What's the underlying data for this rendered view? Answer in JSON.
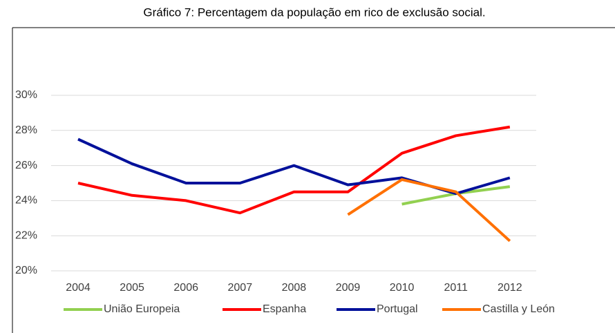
{
  "chart_data": {
    "type": "line",
    "title": "Gráfico 7: Percentagem da população em rico de exclusão social.",
    "categories": [
      "2004",
      "2005",
      "2006",
      "2007",
      "2008",
      "2009",
      "2010",
      "2011",
      "2012"
    ],
    "series": [
      {
        "name": "União Europeia",
        "color": "#92d050",
        "values": [
          null,
          null,
          null,
          null,
          null,
          null,
          23.8,
          24.4,
          24.8
        ]
      },
      {
        "name": "Espanha",
        "color": "#ff0000",
        "values": [
          25.0,
          24.3,
          24.0,
          23.3,
          24.5,
          24.5,
          26.7,
          27.7,
          28.2
        ]
      },
      {
        "name": "Portugal",
        "color": "#00109a",
        "values": [
          27.5,
          26.1,
          25.0,
          25.0,
          26.0,
          24.9,
          25.3,
          24.4,
          25.3
        ]
      },
      {
        "name": "Castilla y León",
        "color": "#ff7000",
        "values": [
          null,
          null,
          null,
          null,
          null,
          23.2,
          25.2,
          24.5,
          21.7
        ]
      }
    ],
    "ylim": [
      20,
      30
    ],
    "yticks": [
      {
        "value": 20,
        "label": "20%"
      },
      {
        "value": 22,
        "label": "22%"
      },
      {
        "value": 24,
        "label": "24%"
      },
      {
        "value": 26,
        "label": "26%"
      },
      {
        "value": 28,
        "label": "28%"
      },
      {
        "value": 30,
        "label": "30%"
      }
    ],
    "grid": true,
    "legend": "bottom"
  }
}
